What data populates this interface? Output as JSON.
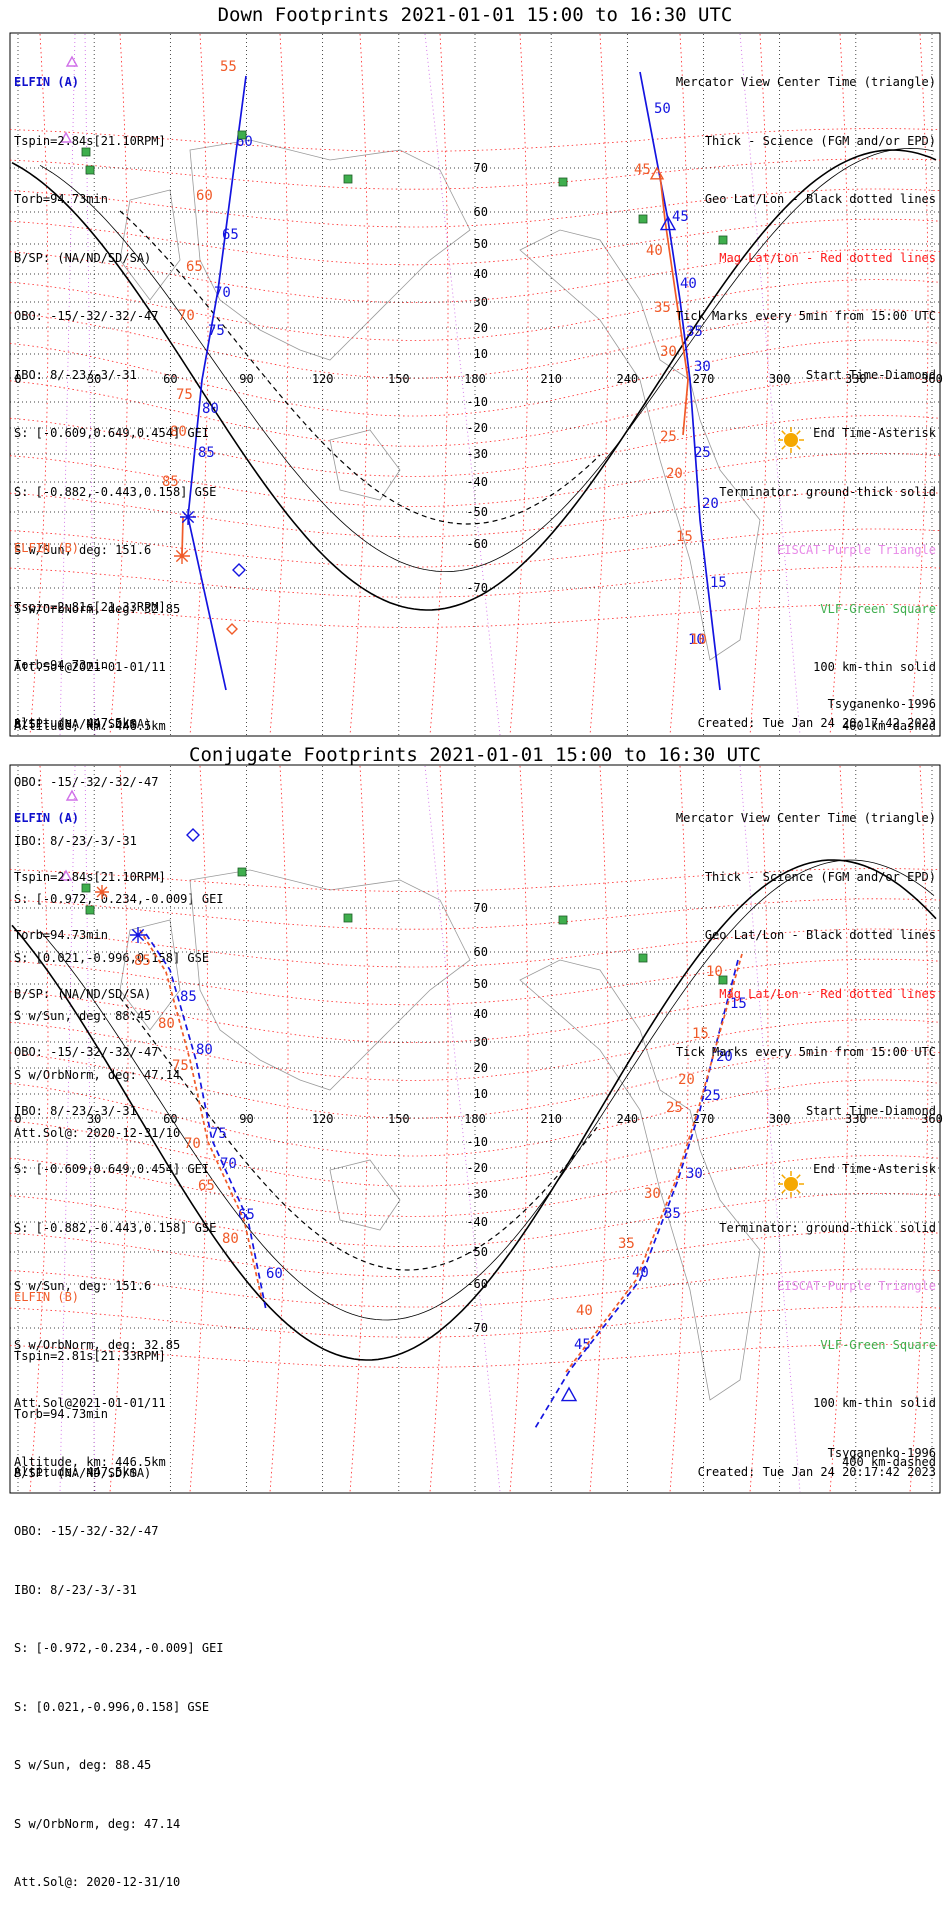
{
  "panels": [
    {
      "title": "Down Footprints 2021-01-01 15:00 to 16:30 UTC",
      "sat_a": {
        "name": "ELFIN (A)",
        "lines": [
          "Tspin=2.84s[21.10RPM]",
          "Torb=94.73min",
          "B/SP: (NA/ND/SD/SA)",
          "OBO: -15/-32/-32/-47",
          "IBO: 8/-23/-3/-31",
          "S: [-0.609,0.649,0.454] GEI",
          "S: [-0.882,-0.443,0.158] GSE",
          "S w/Sun, deg: 151.6",
          "S w/OrbNorm, deg: 32.85",
          "Att.Sol@2021-01-01/11",
          "Altitude, km: 446.5km"
        ]
      },
      "sat_b": {
        "name": "ELFIN (B)",
        "lines": [
          "Tspin=2.81s[21.33RPM]",
          "Torb=94.73min",
          "B/SP: (NA/ND/SD/SA)",
          "OBO: -15/-32/-32/-47",
          "IBO: 8/-23/-3/-31",
          "S: [-0.972,-0.234,-0.009] GEI",
          "S: [0.021,-0.996,0.158] GSE",
          "S w/Sun, deg: 88.45",
          "S w/OrbNorm, deg: 47.14",
          "Att.Sol@: 2020-12-31/10",
          "Altitude: 447.5km"
        ]
      },
      "legend": [
        "Mercator View Center Time (triangle)",
        "Thick - Science (FGM and/or EPD)",
        "Geo Lat/Lon - Black dotted lines",
        "Mag Lat/Lon - Red dotted lines",
        "Tick Marks every 5min from 15:00 UTC",
        "Start Time-Diamond",
        "End Time-Asterisk",
        "Terminator: ground-thick solid",
        "EISCAT-Purple Triangle",
        "VLF-Green Square",
        "100 km-thin solid",
        "400 km-dashed"
      ],
      "model": "Tsyganenko-1996",
      "created": "Created: Tue Jan 24 20:17:42 2023",
      "lon_ticks": [
        "0",
        "30",
        "60",
        "90",
        "120",
        "150",
        "180",
        "210",
        "240",
        "270",
        "300",
        "330",
        "360"
      ],
      "lat_ticks": [
        "70",
        "60",
        "50",
        "40",
        "30",
        "20",
        "10",
        "-10",
        "-20",
        "-30",
        "-40",
        "-50",
        "-60",
        "-70"
      ],
      "track_a_labels": [
        "50",
        "45",
        "40",
        "35",
        "30",
        "25",
        "20",
        "15",
        "10"
      ],
      "mag_a_labels": [
        "45",
        "40",
        "35",
        "30",
        "25",
        "20",
        "15",
        "10"
      ],
      "track_b_labels": [
        "60",
        "65",
        "70",
        "75",
        "80",
        "85"
      ],
      "mag_b_labels": [
        "55",
        "60",
        "65",
        "70",
        "75",
        "80",
        "85"
      ]
    },
    {
      "title": "Conjugate Footprints 2021-01-01 15:00 to 16:30 UTC",
      "sat_a": {
        "name": "ELFIN (A)",
        "lines": [
          "Tspin=2.84s[21.10RPM]",
          "Torb=94.73min",
          "B/SP: (NA/ND/SD/SA)",
          "OBO: -15/-32/-32/-47",
          "IBO: 8/-23/-3/-31",
          "S: [-0.609,0.649,0.454] GEI",
          "S: [-0.882,-0.443,0.158] GSE",
          "S w/Sun, deg: 151.6",
          "S w/OrbNorm, deg: 32.85",
          "Att.Sol@2021-01-01/11",
          "Altitude, km: 446.5km"
        ]
      },
      "sat_b": {
        "name": "ELFIN (B)",
        "lines": [
          "Tspin=2.81s[21.33RPM]",
          "Torb=94.73min",
          "B/SP: (NA/ND/SD/SA)",
          "OBO: -15/-32/-32/-47",
          "IBO: 8/-23/-3/-31",
          "S: [-0.972,-0.234,-0.009] GEI",
          "S: [0.021,-0.996,0.158] GSE",
          "S w/Sun, deg: 88.45",
          "S w/OrbNorm, deg: 47.14",
          "Att.Sol@: 2020-12-31/10",
          "Altitude: 447.5km"
        ]
      },
      "legend": [
        "Mercator View Center Time (triangle)",
        "Thick - Science (FGM and/or EPD)",
        "Geo Lat/Lon - Black dotted lines",
        "Mag Lat/Lon - Red dotted lines",
        "Tick Marks every 5min from 15:00 UTC",
        "Start Time-Diamond",
        "End Time-Asterisk",
        "Terminator: ground-thick solid",
        "EISCAT-Purple Triangle",
        "VLF-Green Square",
        "100 km-thin solid",
        "400 km-dashed"
      ],
      "model": "Tsyganenko-1996",
      "created": "Created: Tue Jan 24 20:17:42 2023",
      "lon_ticks": [
        "0",
        "30",
        "60",
        "90",
        "120",
        "150",
        "180",
        "210",
        "240",
        "270",
        "300",
        "330",
        "360"
      ],
      "lat_ticks": [
        "70",
        "60",
        "50",
        "40",
        "30",
        "20",
        "10",
        "-10",
        "-20",
        "-30",
        "-40",
        "-50",
        "-60",
        "-70"
      ],
      "track_a_labels": [
        "15",
        "20",
        "25",
        "30",
        "35",
        "40",
        "45"
      ],
      "mag_a_labels": [
        "10",
        "15",
        "20",
        "25",
        "30",
        "35",
        "40"
      ],
      "track_b_labels": [
        "85",
        "80",
        "75",
        "70",
        "65",
        "60"
      ],
      "mag_b_labels": [
        "85",
        "80",
        "75",
        "70",
        "65",
        "80"
      ]
    }
  ],
  "colors": {
    "track": "#1414e0",
    "mag": "#f05a28",
    "mag_grid": "#ff2020",
    "geo_grid": "#000000",
    "purple": "#d070e8",
    "vlf": "#3fae4d",
    "sun": "#f5a800",
    "coast": "#9a9a9a"
  }
}
